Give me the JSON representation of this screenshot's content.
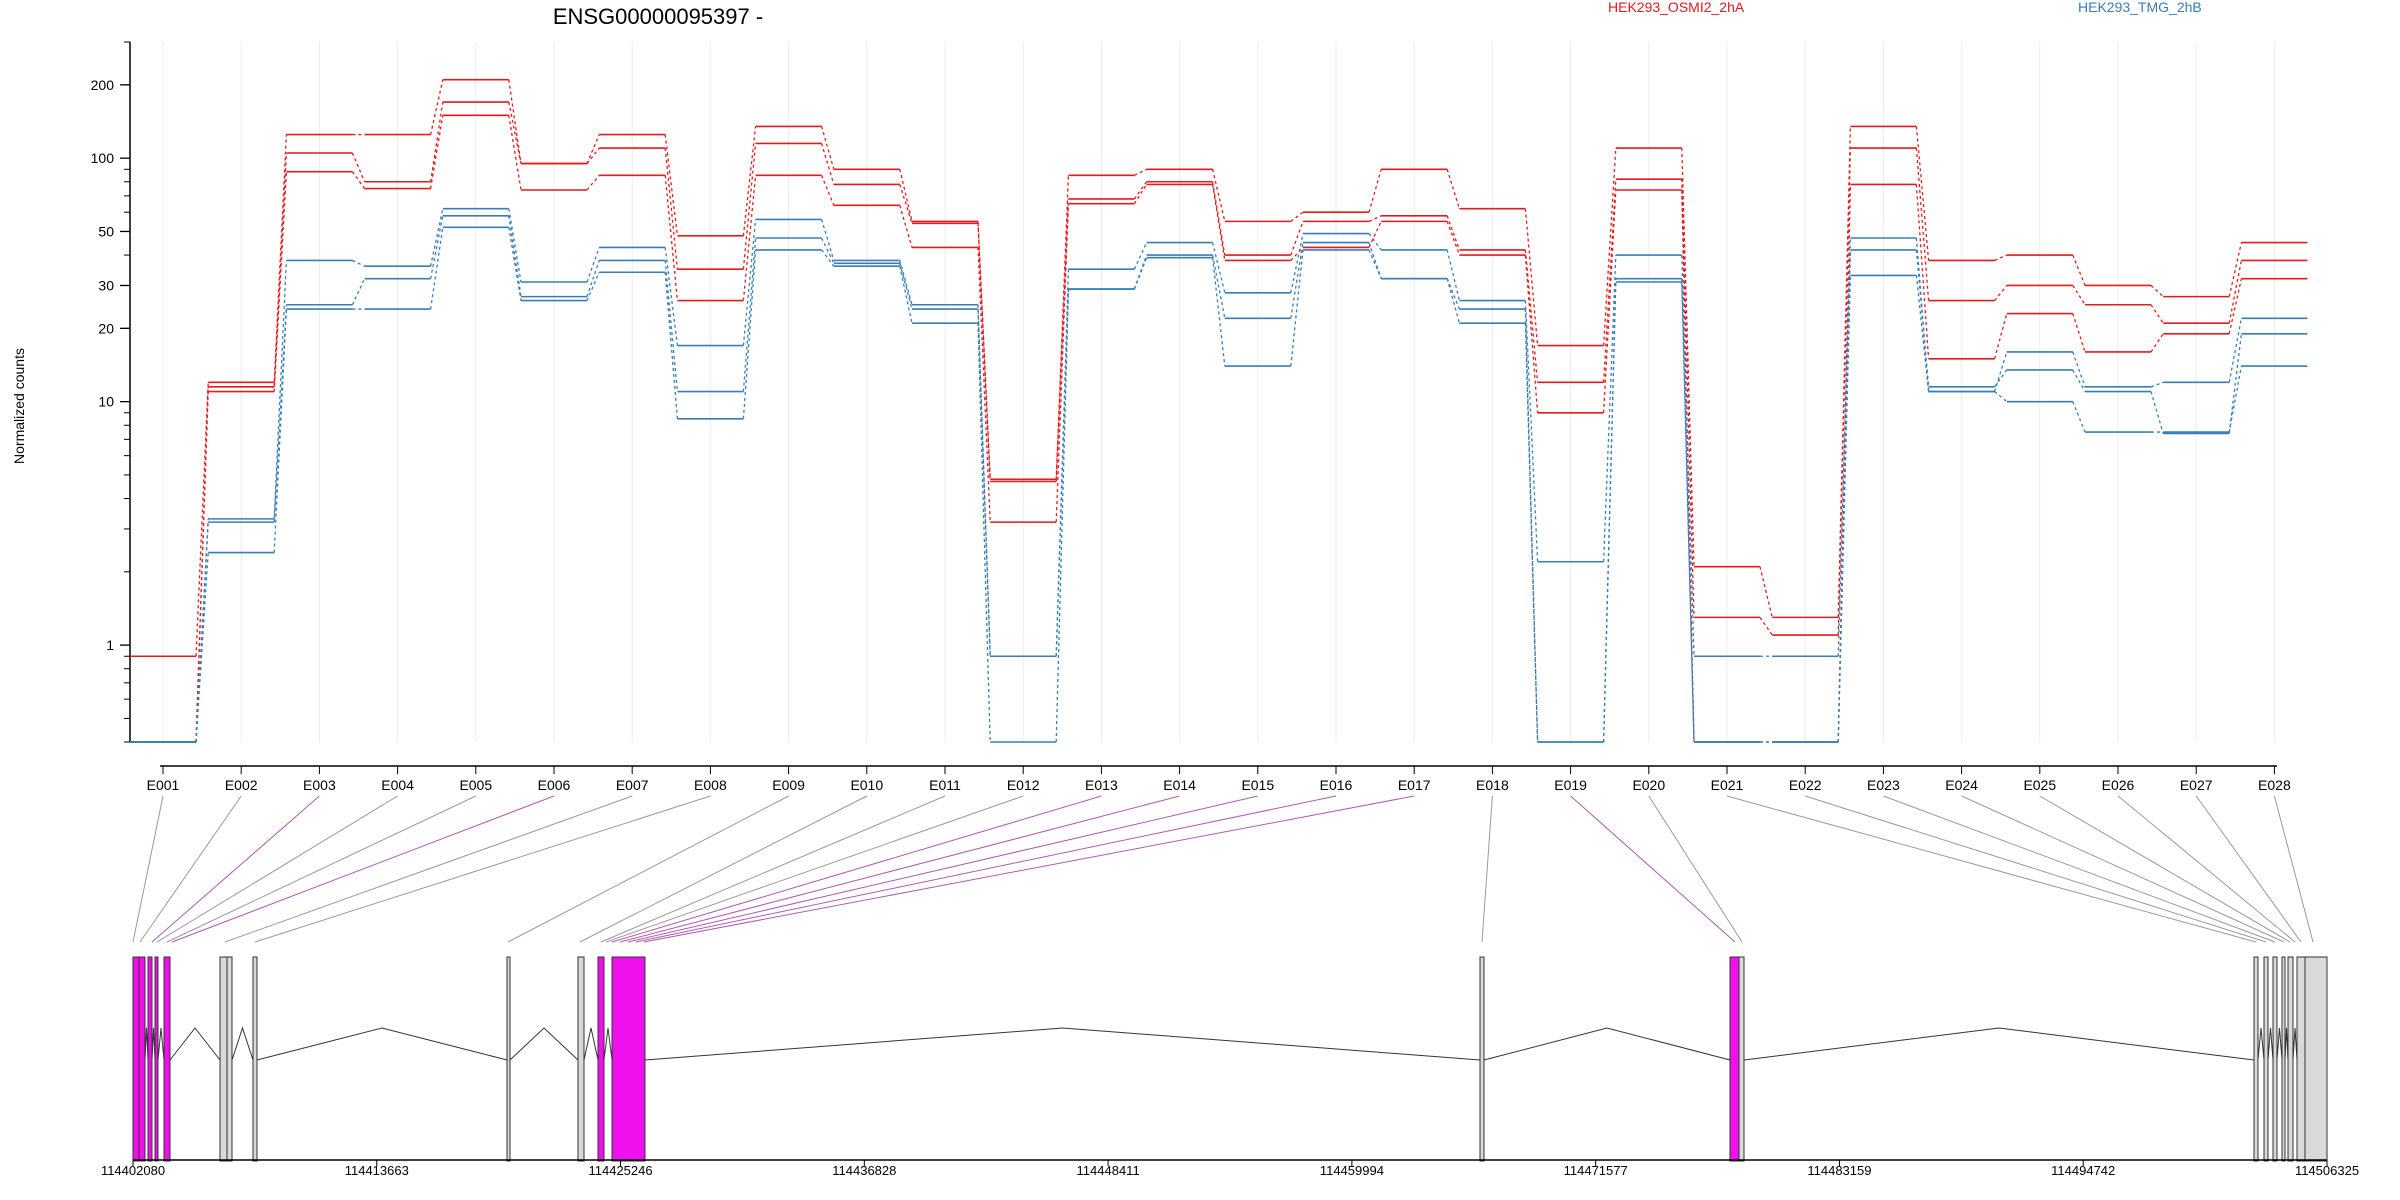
{
  "chart_data": {
    "type": "line",
    "title": "ENSG00000095397 -",
    "ylabel": "Normalized counts",
    "yscale": "log",
    "ylim": [
      0.4,
      300
    ],
    "yticks": [
      1,
      10,
      20,
      30,
      50,
      100,
      200
    ],
    "grid": true,
    "legend_placement": "top-right",
    "legend": [
      {
        "label": "HEK293_OSMI2_2hA",
        "color": "#e41a1c"
      },
      {
        "label": "HEK293_TMG_2hB",
        "color": "#377eb8"
      }
    ],
    "categories": [
      "E001",
      "E002",
      "E003",
      "E004",
      "E005",
      "E006",
      "E007",
      "E008",
      "E009",
      "E010",
      "E011",
      "E012",
      "E013",
      "E014",
      "E015",
      "E016",
      "E017",
      "E018",
      "E019",
      "E020",
      "E021",
      "E022",
      "E023",
      "E024",
      "E025",
      "E026",
      "E027",
      "E028"
    ],
    "series": [
      {
        "color": "#e41a1c",
        "values": [
          0.9,
          12,
          125,
          125,
          210,
          95,
          125,
          48,
          135,
          90,
          55,
          4.8,
          85,
          90,
          55,
          60,
          90,
          62,
          17,
          110,
          2.1,
          1.3,
          135,
          38,
          40,
          30,
          27,
          45
        ]
      },
      {
        "color": "#e41a1c",
        "values": [
          0.4,
          11.5,
          105,
          80,
          170,
          95,
          110,
          35,
          115,
          78,
          54,
          4.7,
          68,
          80,
          40,
          55,
          58,
          42,
          12,
          82,
          1.3,
          1.1,
          110,
          26,
          30,
          25,
          21,
          38
        ]
      },
      {
        "color": "#e41a1c",
        "values": [
          0.4,
          11,
          88,
          75,
          150,
          74,
          85,
          26,
          85,
          64,
          43,
          3.2,
          65,
          78,
          38,
          43,
          55,
          40,
          9,
          74,
          0.4,
          0.4,
          78,
          15,
          23,
          16,
          19,
          32
        ]
      },
      {
        "color": "#377eb8",
        "values": [
          0.4,
          3.3,
          38,
          36,
          62,
          31,
          43,
          17,
          56,
          38,
          25,
          0.9,
          35,
          45,
          28,
          49,
          42,
          26,
          2.2,
          40,
          0.9,
          0.9,
          47,
          11,
          16,
          11.5,
          12,
          22
        ]
      },
      {
        "color": "#377eb8",
        "values": [
          0.4,
          3.2,
          25,
          32,
          58,
          27,
          38,
          11,
          47,
          37,
          24,
          0.9,
          29,
          40,
          22,
          45,
          32,
          24,
          0.4,
          32,
          0.4,
          0.4,
          42,
          11.5,
          13.5,
          11,
          7.4,
          19
        ]
      },
      {
        "color": "#377eb8",
        "values": [
          0.4,
          2.4,
          24,
          24,
          52,
          26,
          34,
          8.5,
          42,
          36,
          21,
          0.4,
          29,
          39,
          14,
          42,
          32,
          21,
          0.4,
          31,
          0.4,
          0.4,
          33,
          11,
          10,
          7.5,
          7.5,
          14
        ]
      }
    ],
    "genome": {
      "tick_labels": [
        "114402080",
        "114413663",
        "114425246",
        "114436828",
        "114448411",
        "114459994",
        "114471577",
        "114483159",
        "114494742",
        "114506325"
      ],
      "highlight_color": "#ee11ee",
      "exon_color": "#d9d9d9"
    }
  }
}
